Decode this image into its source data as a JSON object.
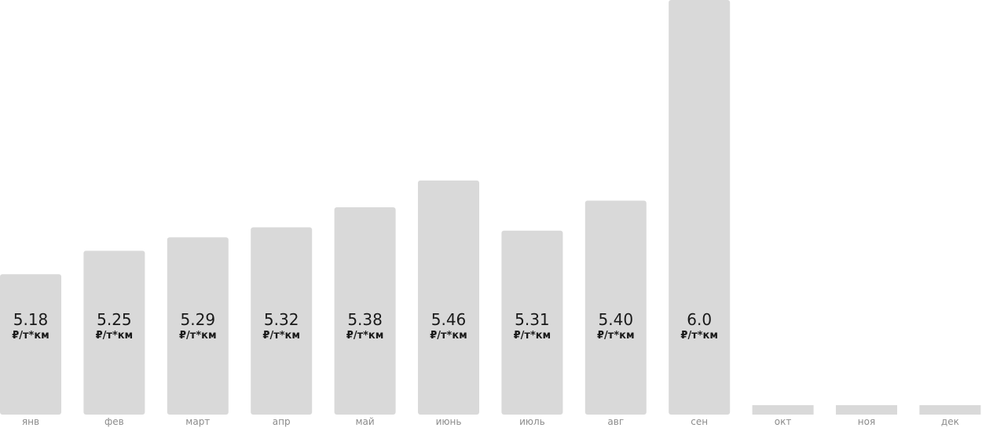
{
  "chart_data": {
    "type": "bar",
    "categories": [
      "янв",
      "фев",
      "март",
      "апр",
      "май",
      "июнь",
      "июль",
      "авг",
      "сен",
      "окт",
      "ноя",
      "дек"
    ],
    "values": [
      5.18,
      5.25,
      5.29,
      5.32,
      5.38,
      5.46,
      5.31,
      5.4,
      6.0,
      null,
      null,
      null
    ],
    "value_labels": [
      "5.18",
      "5.25",
      "5.29",
      "5.32",
      "5.38",
      "5.46",
      "5.31",
      "5.40",
      "6.0",
      "",
      "",
      ""
    ],
    "unit_label": "₽/т*км",
    "title": "",
    "xlabel": "",
    "ylabel": "",
    "grid": false,
    "legend": "none",
    "colors": {
      "bar": "#d9d9d9",
      "value_text": "#1a1a1a",
      "tick_text": "#8c8c8c"
    }
  }
}
